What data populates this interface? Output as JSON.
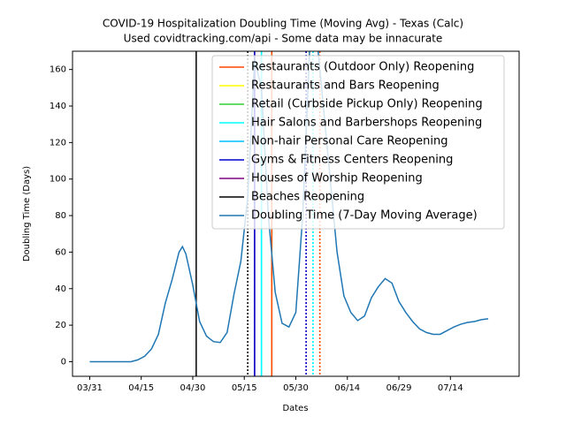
{
  "chart_data": {
    "type": "line",
    "title": "COVID-19 Hospitalization Doubling Time (Moving Avg) - Texas (Calc)",
    "subtitle": "Used covidtracking.com/api - Some data may be innacurate",
    "x_label": "Dates",
    "y_label": "Doubling Time (Days)",
    "xlim": [
      "03/26",
      "08/03"
    ],
    "xticks": [
      "03/31",
      "04/15",
      "04/30",
      "05/15",
      "05/30",
      "06/14",
      "06/29",
      "07/14"
    ],
    "ylim": [
      -8,
      170
    ],
    "yticks": [
      0,
      20,
      40,
      60,
      80,
      100,
      120,
      140,
      160
    ],
    "legend": "upper right",
    "events": [
      {
        "name": "Restaurants (Outdoor Only) Reopening",
        "color": "#ff4500",
        "dates": [
          "05/23",
          "06/06"
        ],
        "linestyles": [
          "solid",
          "dotted"
        ]
      },
      {
        "name": "Restaurants and Bars Reopening",
        "color": "#ffff00",
        "dates": [
          "05/23",
          "06/06"
        ],
        "linestyles": [
          "solid",
          "dotted"
        ]
      },
      {
        "name": "Retail (Curbside Pickup Only) Reopening",
        "color": "#32cd32",
        "dates": [
          "05/23",
          "06/06"
        ],
        "linestyles": [
          "solid",
          "dotted"
        ]
      },
      {
        "name": "Hair Salons and Barbershops Reopening",
        "color": "#00ffff",
        "dates": [
          "05/20",
          "06/04"
        ],
        "linestyles": [
          "solid",
          "dotted"
        ]
      },
      {
        "name": "Non-hair Personal Care Reopening",
        "color": "#00bfff",
        "dates": [
          "05/20",
          "06/04"
        ],
        "linestyles": [
          "solid",
          "dotted"
        ]
      },
      {
        "name": "Gyms & Fitness Centers Reopening",
        "color": "#0000cd",
        "dates": [
          "05/18",
          "06/02"
        ],
        "linestyles": [
          "solid",
          "dotted"
        ]
      },
      {
        "name": "Houses of Worship Reopening",
        "color": "#800080",
        "dates": [
          "05/18",
          "06/02"
        ],
        "linestyles": [
          "solid",
          "dotted"
        ]
      },
      {
        "name": "Beaches Reopening",
        "color": "#000000",
        "dates": [
          "05/01",
          "05/16"
        ],
        "linestyles": [
          "solid",
          "dotted"
        ]
      }
    ],
    "x": [
      "03/31",
      "04/02",
      "04/04",
      "04/06",
      "04/08",
      "04/10",
      "04/12",
      "04/14",
      "04/16",
      "04/18",
      "04/20",
      "04/22",
      "04/24",
      "04/26",
      "04/27",
      "04/28",
      "04/30",
      "05/02",
      "05/04",
      "05/06",
      "05/08",
      "05/10",
      "05/12",
      "05/14",
      "05/16",
      "05/18",
      "05/20",
      "05/22",
      "05/24",
      "05/26",
      "05/28",
      "05/30",
      "06/01",
      "06/03",
      "06/05",
      "06/07",
      "06/09",
      "06/11",
      "06/13",
      "06/15",
      "06/17",
      "06/19",
      "06/21",
      "06/23",
      "06/25",
      "06/27",
      "06/29",
      "07/01",
      "07/03",
      "07/05",
      "07/07",
      "07/09",
      "07/11",
      "07/13",
      "07/15",
      "07/17",
      "07/19",
      "07/21",
      "07/23",
      "07/25"
    ],
    "series": [
      {
        "name": "Doubling Time (7-Day Moving Average)",
        "color": "#1f77b4",
        "values": [
          0,
          0,
          0,
          0,
          0,
          0,
          0,
          1,
          3,
          7,
          15,
          32,
          45,
          60,
          63,
          59,
          42,
          22,
          14,
          11,
          10.5,
          16,
          37,
          55,
          90,
          165,
          150,
          80,
          38,
          21,
          19,
          27,
          80,
          170,
          180,
          140,
          100,
          60,
          36,
          27,
          22.5,
          25,
          35,
          41,
          45.5,
          43,
          33,
          27,
          22,
          18,
          16,
          15,
          15,
          17,
          19,
          20.5,
          21.5,
          22,
          23,
          23.5
        ]
      }
    ]
  }
}
